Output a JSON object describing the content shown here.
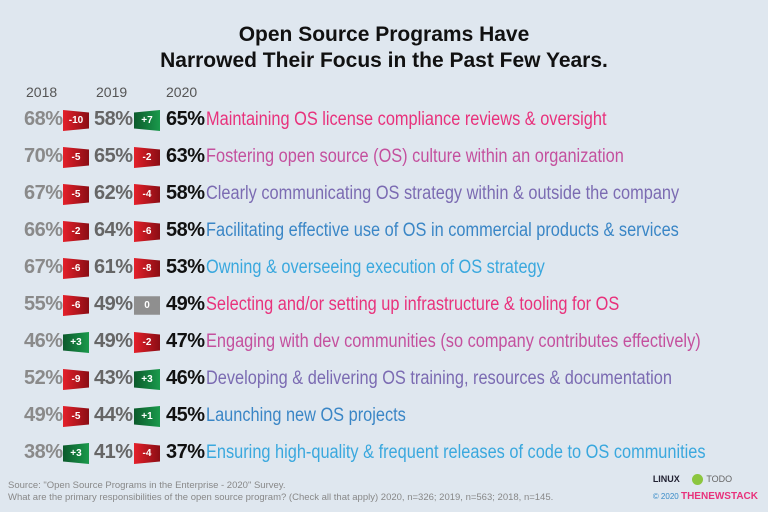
{
  "chart_data": {
    "type": "table",
    "title_line1": "Open Source Programs Have",
    "title_line2": "Narrowed Their Focus in the Past Few Years.",
    "years": [
      "2018",
      "2019",
      "2020"
    ],
    "rows": [
      {
        "label": "Maintaining OS license compliance reviews & oversight",
        "v2018": "68%",
        "c1": "-10",
        "v2019": "58%",
        "c2": "+7",
        "v2020": "65%",
        "color": "#e8327c"
      },
      {
        "label": "Fostering open source (OS) culture within an organization",
        "v2018": "70%",
        "c1": "-5",
        "v2019": "65%",
        "c2": "-2",
        "v2020": "63%",
        "color": "#c4509e"
      },
      {
        "label": "Clearly communicating OS strategy within & outside the company",
        "v2018": "67%",
        "c1": "-5",
        "v2019": "62%",
        "c2": "-4",
        "v2020": "58%",
        "color": "#7b6bb2"
      },
      {
        "label": "Facilitating effective use of OS in commercial products & services",
        "v2018": "66%",
        "c1": "-2",
        "v2019": "64%",
        "c2": "-6",
        "v2020": "58%",
        "color": "#3a86c6"
      },
      {
        "label": "Owning & overseeing execution of OS strategy",
        "v2018": "67%",
        "c1": "-6",
        "v2019": "61%",
        "c2": "-8",
        "v2020": "53%",
        "color": "#3aa8de"
      },
      {
        "label": "Selecting and/or setting up infrastructure & tooling for OS",
        "v2018": "55%",
        "c1": "-6",
        "v2019": "49%",
        "c2": "0",
        "v2020": "49%",
        "color": "#e8327c"
      },
      {
        "label": "Engaging with dev communities (so company contributes effectively)",
        "v2018": "46%",
        "c1": "+3",
        "v2019": "49%",
        "c2": "-2",
        "v2020": "47%",
        "color": "#c4509e"
      },
      {
        "label": "Developing & delivering OS training, resources & documentation",
        "v2018": "52%",
        "c1": "-9",
        "v2019": "43%",
        "c2": "+3",
        "v2020": "46%",
        "color": "#7b6bb2"
      },
      {
        "label": "Launching new OS projects",
        "v2018": "49%",
        "c1": "-5",
        "v2019": "44%",
        "c2": "+1",
        "v2020": "45%",
        "color": "#3a86c6"
      },
      {
        "label": "Ensuring high-quality & frequent releases of code to OS communities",
        "v2018": "38%",
        "c1": "+3",
        "v2019": "41%",
        "c2": "-4",
        "v2020": "37%",
        "color": "#3aa8de"
      }
    ]
  },
  "footer": {
    "source": "Source: \"Open Source Programs in the Enterprise - 2020\" Survey.",
    "question": "What are the primary responsibilities of the open source program? (Check all that apply) 2020, n=326; 2019, n=563; 2018, n=145.",
    "logo1": "LINUX",
    "logo2": "TODO",
    "copyright": "© 2020",
    "brand": "THENEWSTACK"
  }
}
